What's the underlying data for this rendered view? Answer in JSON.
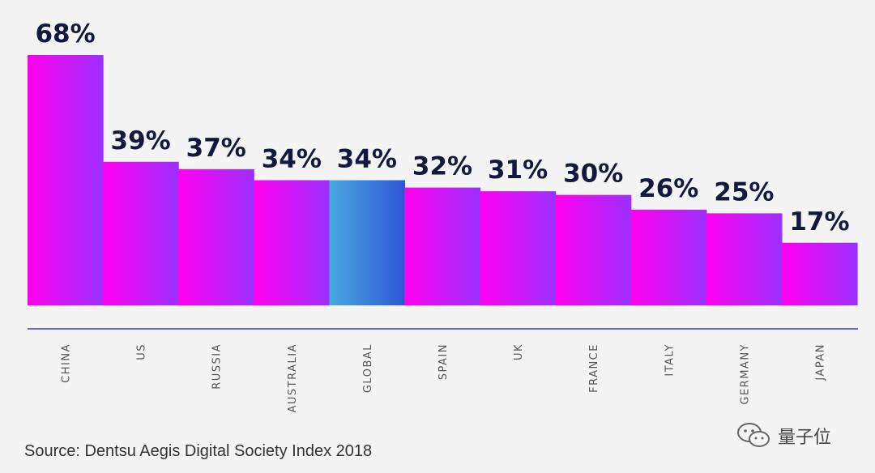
{
  "chart_data": {
    "type": "bar",
    "categories": [
      "CHINA",
      "US",
      "RUSSIA",
      "AUSTRALIA",
      "GLOBAL",
      "SPAIN",
      "UK",
      "FRANCE",
      "ITALY",
      "GERMANY",
      "JAPAN"
    ],
    "values": [
      68,
      39,
      37,
      34,
      34,
      32,
      31,
      30,
      26,
      25,
      17
    ],
    "value_labels": [
      "68%",
      "39%",
      "37%",
      "34%",
      "34%",
      "32%",
      "31%",
      "30%",
      "26%",
      "25%",
      "17%"
    ],
    "highlight_category": "GLOBAL",
    "title": "",
    "xlabel": "",
    "ylabel": "",
    "grid": false,
    "colors": {
      "bar_start": "#ff00ee",
      "bar_end": "#9b30ff",
      "highlight_start": "#4aa8de",
      "highlight_end": "#2d56d6",
      "value_text": "#13183f",
      "axis_line": "#6b6bc6"
    }
  },
  "source": "Source: Dentsu Aegis Digital Society Index 2018",
  "watermark": {
    "text": "量子位",
    "icon": "wechat-icon"
  }
}
